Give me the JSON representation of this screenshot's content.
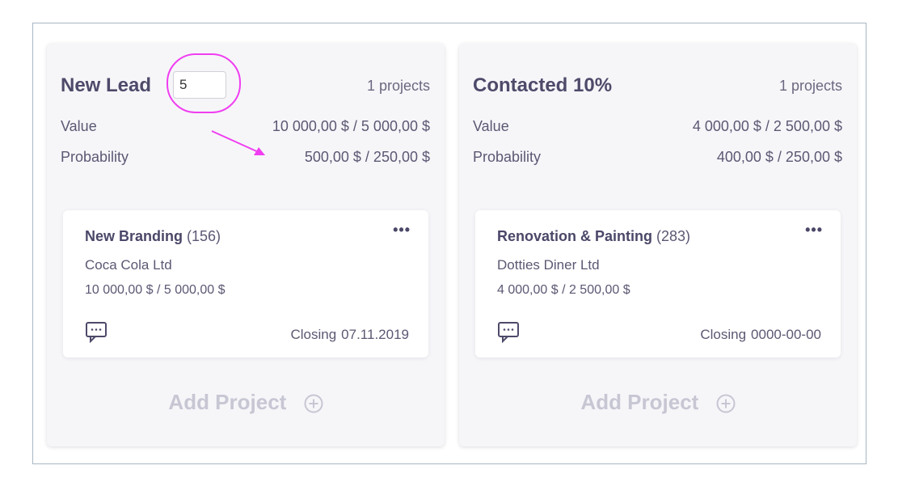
{
  "columns": [
    {
      "title": "New Lead",
      "stage_input_value": "5",
      "projects_count": "1 projects",
      "value_label": "Value",
      "value_amount": "10 000,00 $ / 5 000,00 $",
      "probability_label": "Probability",
      "probability_amount": "500,00 $ / 250,00 $",
      "card": {
        "title": "New Branding",
        "number": "(156)",
        "client": "Coca Cola Ltd",
        "amount": "10 000,00 $ / 5 000,00 $",
        "closing_label": "Closing",
        "closing_date": "07.11.2019"
      },
      "add_project_label": "Add Project"
    },
    {
      "title": "Contacted 10%",
      "projects_count": "1 projects",
      "value_label": "Value",
      "value_amount": "4 000,00 $ / 2 500,00 $",
      "probability_label": "Probability",
      "probability_amount": "400,00 $ / 250,00 $",
      "card": {
        "title": "Renovation & Painting",
        "number": "(283)",
        "client": "Dotties Diner Ltd",
        "amount": "4 000,00 $ / 2 500,00 $",
        "closing_label": "Closing",
        "closing_date": "0000-00-00"
      },
      "add_project_label": "Add Project"
    }
  ],
  "icons": {
    "more": "more-icon",
    "comment": "comment-icon",
    "add": "plus-circle-icon",
    "annotation_arrow": "arrow-icon"
  },
  "more_glyph": "•••",
  "colors": {
    "annotation": "#f03ef0",
    "text_dark": "#4e4a6a",
    "add_project": "#c7c6d3",
    "column_bg": "#f6f6f9"
  }
}
